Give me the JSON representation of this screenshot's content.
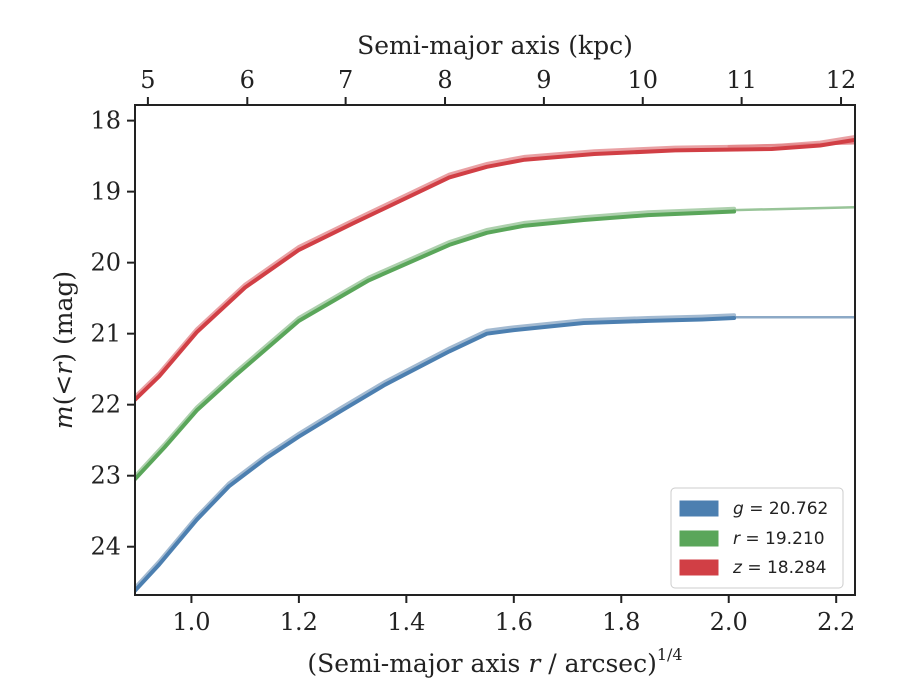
{
  "chart_data": {
    "type": "line",
    "xlabel_prefix": "(Semi-major axis ",
    "xlabel_var": "r",
    "xlabel_suffix": " / arcsec)",
    "xlabel_sup": "1/4",
    "ylabel_m": "m",
    "ylabel_mid": "(<",
    "ylabel_r": "r",
    "ylabel_end": ") (mag)",
    "top_xlabel": "Semi-major axis (kpc)",
    "xlim": [
      0.895,
      2.235
    ],
    "ylim": [
      24.68,
      17.78
    ],
    "y_inverted": true,
    "x_ticks": [
      {
        "v": 1.0,
        "label": "1.0"
      },
      {
        "v": 1.2,
        "label": "1.2"
      },
      {
        "v": 1.4,
        "label": "1.4"
      },
      {
        "v": 1.6,
        "label": "1.6"
      },
      {
        "v": 1.8,
        "label": "1.8"
      },
      {
        "v": 2.0,
        "label": "2.0"
      },
      {
        "v": 2.2,
        "label": "2.2"
      }
    ],
    "y_ticks": [
      {
        "v": 18,
        "label": "18"
      },
      {
        "v": 19,
        "label": "19"
      },
      {
        "v": 20,
        "label": "20"
      },
      {
        "v": 21,
        "label": "21"
      },
      {
        "v": 22,
        "label": "22"
      },
      {
        "v": 23,
        "label": "23"
      },
      {
        "v": 24,
        "label": "24"
      }
    ],
    "top_ticks": [
      {
        "x": 0.919,
        "label": "5"
      },
      {
        "x": 1.104,
        "label": "6"
      },
      {
        "x": 1.287,
        "label": "7"
      },
      {
        "x": 1.472,
        "label": "8"
      },
      {
        "x": 1.656,
        "label": "9"
      },
      {
        "x": 1.84,
        "label": "10"
      },
      {
        "x": 2.024,
        "label": "11"
      },
      {
        "x": 2.209,
        "label": "12"
      }
    ],
    "grid": false,
    "legend_placement": "bottom-right",
    "series": [
      {
        "name_var": "g",
        "name_value": " = 20.762",
        "color": "#4c7fb0",
        "light": "#8ca9c6",
        "main": {
          "x": [
            0.895,
            0.94,
            1.01,
            1.07,
            1.14,
            1.2,
            1.28,
            1.36,
            1.48,
            1.55,
            1.6,
            1.73,
            1.85,
            1.95,
            2.01
          ],
          "y": [
            24.62,
            24.25,
            23.62,
            23.15,
            22.75,
            22.45,
            22.08,
            21.72,
            21.25,
            21.0,
            20.95,
            20.85,
            20.82,
            20.8,
            20.78
          ]
        },
        "extension": {
          "x": [
            2.01,
            2.235
          ],
          "y": [
            20.77,
            20.77
          ]
        }
      },
      {
        "name_var": "r",
        "name_value": " = 19.210",
        "color": "#5aa65a",
        "light": "#98c498",
        "main": {
          "x": [
            0.895,
            0.95,
            1.01,
            1.08,
            1.2,
            1.33,
            1.48,
            1.55,
            1.62,
            1.73,
            1.85,
            1.95,
            2.01
          ],
          "y": [
            23.05,
            22.6,
            22.08,
            21.6,
            20.82,
            20.25,
            19.75,
            19.58,
            19.48,
            19.4,
            19.33,
            19.3,
            19.28
          ]
        },
        "extension": {
          "x": [
            2.01,
            2.235
          ],
          "y": [
            19.26,
            19.22
          ]
        }
      },
      {
        "name_var": "z",
        "name_value": " = 18.284",
        "color": "#d13f45",
        "light": "#e48a8d",
        "main": {
          "x": [
            0.895,
            0.94,
            1.01,
            1.1,
            1.2,
            1.3,
            1.48,
            1.55,
            1.62,
            1.75,
            1.9,
            2.08,
            2.17,
            2.235
          ],
          "y": [
            21.93,
            21.6,
            20.98,
            20.35,
            19.82,
            19.45,
            18.8,
            18.65,
            18.55,
            18.47,
            18.42,
            18.4,
            18.35,
            18.27
          ]
        },
        "extension": {
          "x": [
            2.0,
            2.235
          ],
          "y": [
            18.36,
            18.32
          ]
        }
      }
    ]
  }
}
